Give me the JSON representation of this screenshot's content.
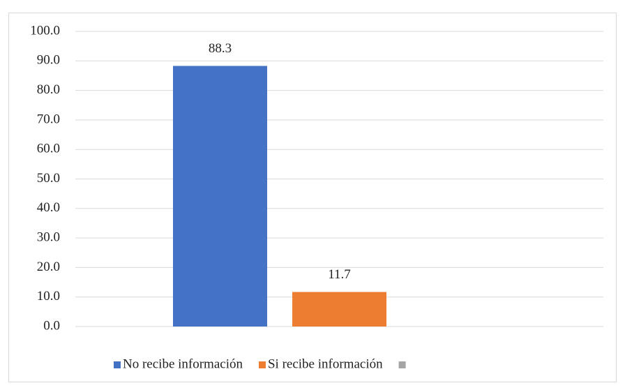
{
  "chart_data": {
    "type": "bar",
    "categories": [
      null
    ],
    "series": [
      {
        "name": "No recibe información",
        "color": "#4472c4",
        "values": [
          88.3
        ]
      },
      {
        "name": "Si recibe información",
        "color": "#ed7d31",
        "values": [
          11.7
        ]
      },
      {
        "name": null,
        "color": "#a5a5a5",
        "values": [
          null
        ]
      }
    ],
    "ylim": [
      0,
      100
    ],
    "yticks": [
      {
        "value": 0,
        "label": "0.0"
      },
      {
        "value": 10,
        "label": "10.0"
      },
      {
        "value": 20,
        "label": "20.0"
      },
      {
        "value": 30,
        "label": "30.0"
      },
      {
        "value": 40,
        "label": "40.0"
      },
      {
        "value": 50,
        "label": "50.0"
      },
      {
        "value": 60,
        "label": "60.0"
      },
      {
        "value": 70,
        "label": "70.0"
      },
      {
        "value": 80,
        "label": "80.0"
      },
      {
        "value": 90,
        "label": "90.0"
      },
      {
        "value": 100,
        "label": "100.0"
      }
    ],
    "grid": true,
    "legend": "bottom"
  }
}
